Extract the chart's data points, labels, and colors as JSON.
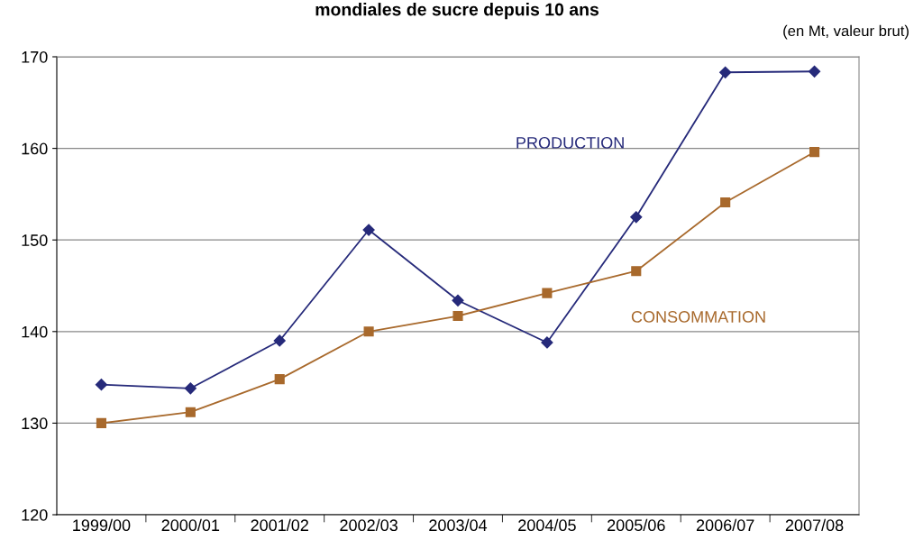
{
  "chart_data": {
    "type": "line",
    "title": "mondiales de sucre depuis 10 ans",
    "subtitle": "(en Mt, valeur brut)",
    "categories": [
      "1999/00",
      "2000/01",
      "2001/02",
      "2002/03",
      "2003/04",
      "2004/05",
      "2005/06",
      "2006/07",
      "2007/08"
    ],
    "series": [
      {
        "name": "PRODUCTION",
        "color": "#262a7a",
        "marker": "diamond",
        "values": [
          134.2,
          133.8,
          139.0,
          151.1,
          143.4,
          138.8,
          152.5,
          168.3,
          168.4
        ]
      },
      {
        "name": "CONSOMMATION",
        "color": "#a8692c",
        "marker": "square",
        "values": [
          130.0,
          131.2,
          134.8,
          140.0,
          141.7,
          144.2,
          146.6,
          154.1,
          159.6
        ]
      }
    ],
    "ylim": [
      120,
      170
    ],
    "yticks": [
      120,
      130,
      140,
      150,
      160,
      170
    ],
    "grid": "y",
    "legend": false
  }
}
